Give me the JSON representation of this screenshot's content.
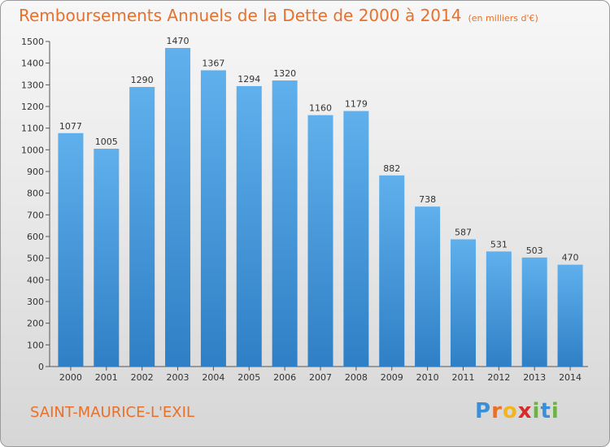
{
  "header": {
    "title": "Remboursements Annuels de la Dette de 2000 à 2014",
    "unit": "(en milliers d'€)"
  },
  "footer": {
    "commune": "SAINT-MAURICE-L'EXIL",
    "logo_letters": [
      "P",
      "r",
      "o",
      "x",
      "i",
      "t",
      "i"
    ],
    "logo_colors": [
      "#3a8fd6",
      "#e8702a",
      "#f2b51e",
      "#d62b2b",
      "#6cb33f",
      "#3a8fd6",
      "#6cb33f"
    ]
  },
  "colors": {
    "bar_light": "#5fb0ec",
    "bar_dark": "#2f7fc6",
    "accent": "#e8702a"
  },
  "chart_data": {
    "type": "bar",
    "title": "Remboursements Annuels de la Dette de 2000 à 2014",
    "xlabel": "",
    "ylabel": "",
    "categories": [
      "2000",
      "2001",
      "2002",
      "2003",
      "2004",
      "2005",
      "2006",
      "2007",
      "2008",
      "2009",
      "2010",
      "2011",
      "2012",
      "2013",
      "2014"
    ],
    "values": [
      1077,
      1005,
      1290,
      1470,
      1367,
      1294,
      1320,
      1160,
      1179,
      882,
      738,
      587,
      531,
      503,
      470
    ],
    "ylim": [
      0,
      1500
    ],
    "yticks": [
      0,
      100,
      200,
      300,
      400,
      500,
      600,
      700,
      800,
      900,
      1000,
      1100,
      1200,
      1300,
      1400,
      1500
    ],
    "grid": false,
    "data_labels": true
  }
}
